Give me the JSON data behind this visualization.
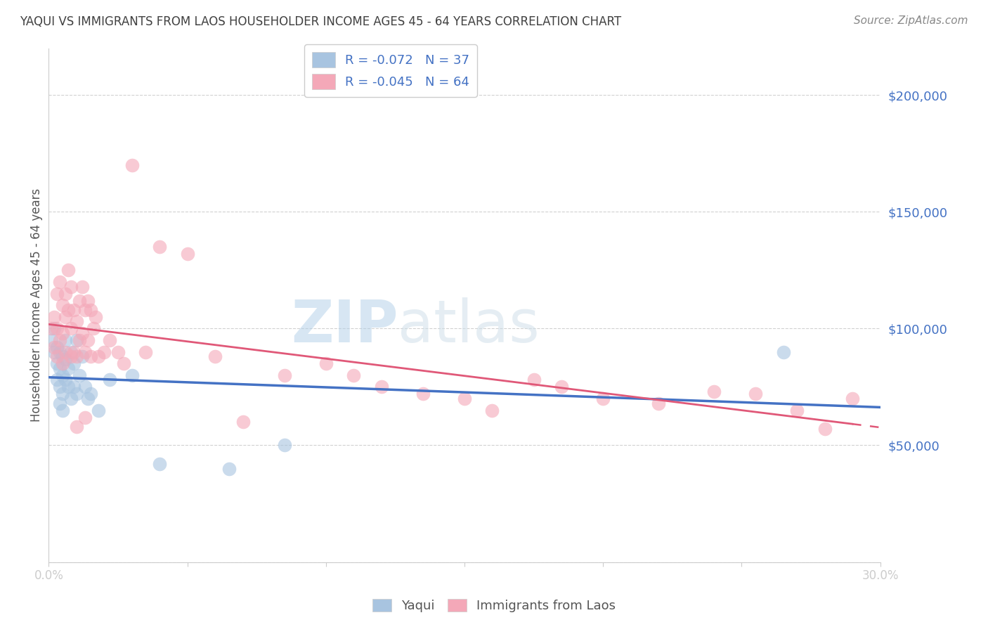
{
  "title": "YAQUI VS IMMIGRANTS FROM LAOS HOUSEHOLDER INCOME AGES 45 - 64 YEARS CORRELATION CHART",
  "source": "Source: ZipAtlas.com",
  "ylabel": "Householder Income Ages 45 - 64 years",
  "xlim": [
    0.0,
    0.3
  ],
  "ylim": [
    0,
    220000
  ],
  "yticks": [
    0,
    50000,
    100000,
    150000,
    200000
  ],
  "ytick_labels": [
    "",
    "$50,000",
    "$100,000",
    "$150,000",
    "$200,000"
  ],
  "xticks": [
    0.0,
    0.05,
    0.1,
    0.15,
    0.2,
    0.25,
    0.3
  ],
  "xtick_labels": [
    "0.0%",
    "",
    "",
    "",
    "",
    "",
    "30.0%"
  ],
  "yaqui_color": "#a8c4e0",
  "laos_color": "#f4a8b8",
  "yaqui_line_color": "#4472c4",
  "laos_line_color": "#e05878",
  "axis_color": "#4472c4",
  "watermark_color": "#cce4f5",
  "yaqui_x": [
    0.001,
    0.002,
    0.002,
    0.003,
    0.003,
    0.003,
    0.004,
    0.004,
    0.004,
    0.004,
    0.005,
    0.005,
    0.005,
    0.005,
    0.006,
    0.006,
    0.006,
    0.007,
    0.007,
    0.008,
    0.008,
    0.009,
    0.009,
    0.01,
    0.01,
    0.011,
    0.012,
    0.013,
    0.014,
    0.015,
    0.018,
    0.022,
    0.03,
    0.04,
    0.065,
    0.085,
    0.265
  ],
  "yaqui_y": [
    95000,
    100000,
    90000,
    92000,
    85000,
    78000,
    90000,
    83000,
    75000,
    68000,
    88000,
    80000,
    72000,
    65000,
    95000,
    87000,
    78000,
    83000,
    75000,
    90000,
    70000,
    85000,
    75000,
    95000,
    72000,
    80000,
    88000,
    75000,
    70000,
    72000,
    65000,
    78000,
    80000,
    42000,
    40000,
    50000,
    90000
  ],
  "laos_x": [
    0.001,
    0.002,
    0.002,
    0.003,
    0.003,
    0.003,
    0.004,
    0.004,
    0.005,
    0.005,
    0.005,
    0.006,
    0.006,
    0.006,
    0.007,
    0.007,
    0.008,
    0.008,
    0.008,
    0.009,
    0.009,
    0.01,
    0.01,
    0.011,
    0.011,
    0.012,
    0.012,
    0.013,
    0.013,
    0.014,
    0.014,
    0.015,
    0.015,
    0.016,
    0.017,
    0.018,
    0.02,
    0.022,
    0.025,
    0.027,
    0.03,
    0.035,
    0.04,
    0.05,
    0.06,
    0.07,
    0.085,
    0.1,
    0.11,
    0.12,
    0.135,
    0.15,
    0.16,
    0.175,
    0.185,
    0.2,
    0.22,
    0.24,
    0.255,
    0.27,
    0.28,
    0.29,
    0.01,
    0.013
  ],
  "laos_y": [
    100000,
    105000,
    92000,
    115000,
    100000,
    88000,
    120000,
    95000,
    110000,
    98000,
    85000,
    115000,
    105000,
    90000,
    125000,
    108000,
    118000,
    100000,
    88000,
    108000,
    90000,
    103000,
    88000,
    112000,
    95000,
    118000,
    98000,
    108000,
    90000,
    112000,
    95000,
    108000,
    88000,
    100000,
    105000,
    88000,
    90000,
    95000,
    90000,
    85000,
    170000,
    90000,
    135000,
    132000,
    88000,
    60000,
    80000,
    85000,
    80000,
    75000,
    72000,
    70000,
    65000,
    78000,
    75000,
    70000,
    68000,
    73000,
    72000,
    65000,
    57000,
    70000,
    58000,
    62000
  ]
}
